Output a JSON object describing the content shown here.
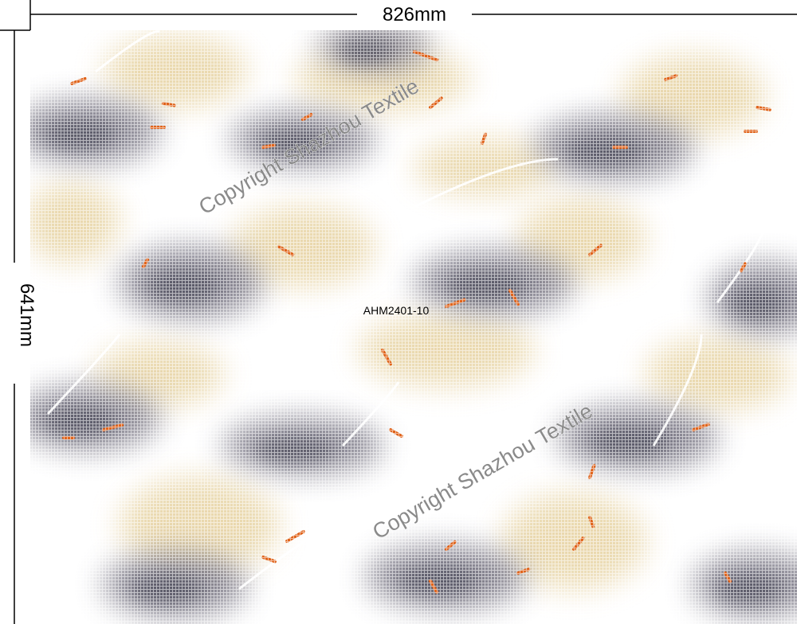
{
  "dimensions": {
    "width": "826mm",
    "height": "641mm"
  },
  "design_code": "AHM2401-10",
  "watermarks": [
    "Copyright Shazhou Textile",
    "Copyright Shazhou Textile"
  ]
}
